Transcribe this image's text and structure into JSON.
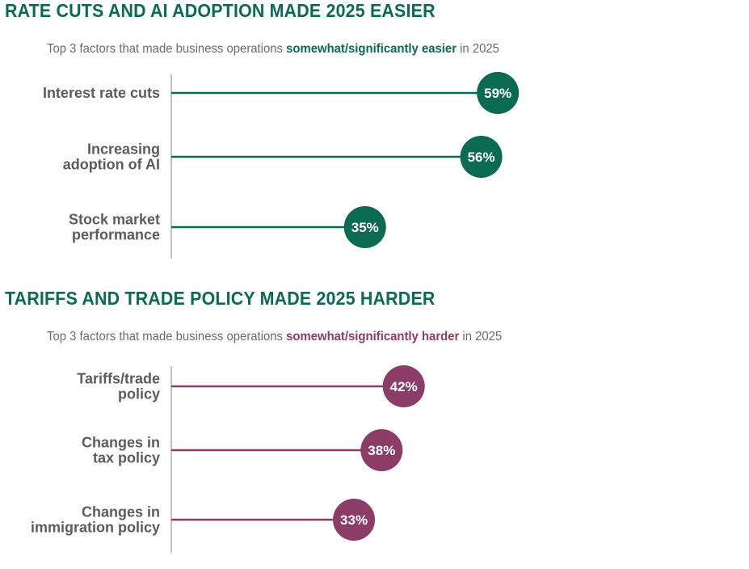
{
  "chart_data": [
    {
      "type": "lollipop",
      "title": "RATE CUTS AND AI ADOPTION MADE 2025 EASIER",
      "subtitle": {
        "before": "Top 3 factors that made business operations ",
        "highlight": "somewhat/significantly easier",
        "after": " in 2025"
      },
      "categories": [
        [
          "Interest rate cuts"
        ],
        [
          "Increasing",
          "adoption of AI"
        ],
        [
          "Stock market",
          "performance"
        ]
      ],
      "values": [
        59,
        56,
        35
      ],
      "value_labels": [
        "59%",
        "56%",
        "35%"
      ],
      "unit": "%",
      "xlim": [
        0,
        100
      ],
      "color": "#0a6a52"
    },
    {
      "type": "lollipop",
      "title": "TARIFFS AND TRADE POLICY MADE 2025 HARDER",
      "subtitle": {
        "before": "Top 3 factors that made business operations ",
        "highlight": "somewhat/significantly harder",
        "after": " in 2025"
      },
      "categories": [
        [
          "Tariffs/trade",
          "policy"
        ],
        [
          "Changes in",
          "tax policy"
        ],
        [
          "Changes in",
          "immigration policy"
        ]
      ],
      "values": [
        42,
        38,
        33
      ],
      "value_labels": [
        "42%",
        "38%",
        "33%"
      ],
      "unit": "%",
      "xlim": [
        0,
        100
      ],
      "color": "#8b3d68"
    }
  ]
}
